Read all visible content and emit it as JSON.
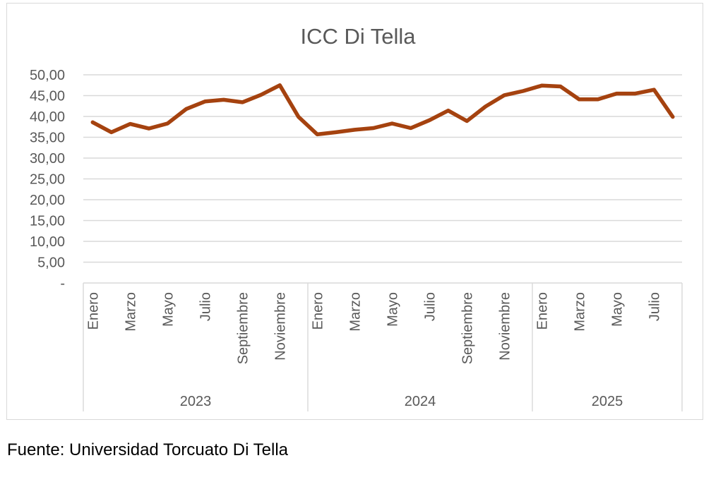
{
  "source_note": "Fuente: Universidad Torcuato Di Tella",
  "colors": {
    "line": "#a5420f",
    "grid": "#d9d9d9",
    "text": "#595959"
  },
  "chart_data": {
    "type": "line",
    "title": "ICC Di Tella",
    "xlabel": "",
    "ylabel": "",
    "ylim": [
      0,
      50
    ],
    "yticks": [
      "-",
      "5,00",
      "10,00",
      "15,00",
      "20,00",
      "25,00",
      "30,00",
      "35,00",
      "40,00",
      "45,00",
      "50,00"
    ],
    "grid": true,
    "groups": [
      {
        "label": "2023",
        "count": 12,
        "tick_labels": [
          "Enero",
          "",
          "Marzo",
          "",
          "Mayo",
          "",
          "Julio",
          "",
          "Septiembre",
          "",
          "Noviembre",
          ""
        ]
      },
      {
        "label": "2024",
        "count": 12,
        "tick_labels": [
          "Enero",
          "",
          "Marzo",
          "",
          "Mayo",
          "",
          "Julio",
          "",
          "Septiembre",
          "",
          "Noviembre",
          ""
        ]
      },
      {
        "label": "2025",
        "count": 8,
        "tick_labels": [
          "Enero",
          "",
          "Marzo",
          "",
          "Mayo",
          "",
          "Julio",
          ""
        ]
      }
    ],
    "values": [
      38.6,
      36.2,
      38.2,
      37.1,
      38.3,
      41.8,
      43.6,
      44.0,
      43.4,
      45.2,
      47.5,
      39.9,
      35.7,
      36.2,
      36.8,
      37.2,
      38.3,
      37.2,
      39.1,
      41.4,
      38.9,
      42.4,
      45.1,
      46.1,
      47.4,
      47.2,
      44.1,
      44.1,
      45.5,
      45.5,
      46.4,
      39.9
    ]
  }
}
